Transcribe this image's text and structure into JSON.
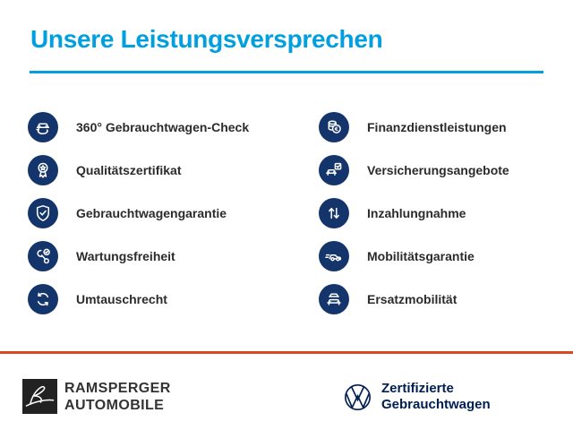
{
  "title": "Unsere Leistungsversprechen",
  "colors": {
    "accent": "#009FE0",
    "circle": "#14356B",
    "divider": "#D9481F",
    "vw_navy": "#001E50",
    "text_dark": "#2B2B2B",
    "dealer_text": "#333333",
    "dealer_dark": "#222222"
  },
  "columns": {
    "left": [
      {
        "label": "360° Gebrauchtwagen-Check",
        "icon": "car-360-icon"
      },
      {
        "label": "Qualitätszertifikat",
        "icon": "medal-icon"
      },
      {
        "label": "Gebrauchtwagengarantie",
        "icon": "shield-check-icon"
      },
      {
        "label": "Wartungsfreiheit",
        "icon": "wrench-check-icon"
      },
      {
        "label": "Umtauschrecht",
        "icon": "exchange-arrows-icon"
      }
    ],
    "right": [
      {
        "label": "Finanzdienstleistungen",
        "icon": "coins-euro-icon"
      },
      {
        "label": "Versicherungsangebote",
        "icon": "car-checkbox-icon"
      },
      {
        "label": "Inzahlungnahme",
        "icon": "arrows-up-down-icon"
      },
      {
        "label": "Mobilitätsgarantie",
        "icon": "car-motion-icon"
      },
      {
        "label": "Ersatzmobilität",
        "icon": "two-cars-icon"
      }
    ]
  },
  "footer": {
    "dealer": {
      "line1": "RAMSPERGER",
      "line2": "AUTOMOBILE"
    },
    "vw": {
      "line1": "Zertifizierte",
      "line2": "Gebrauchtwagen"
    }
  }
}
